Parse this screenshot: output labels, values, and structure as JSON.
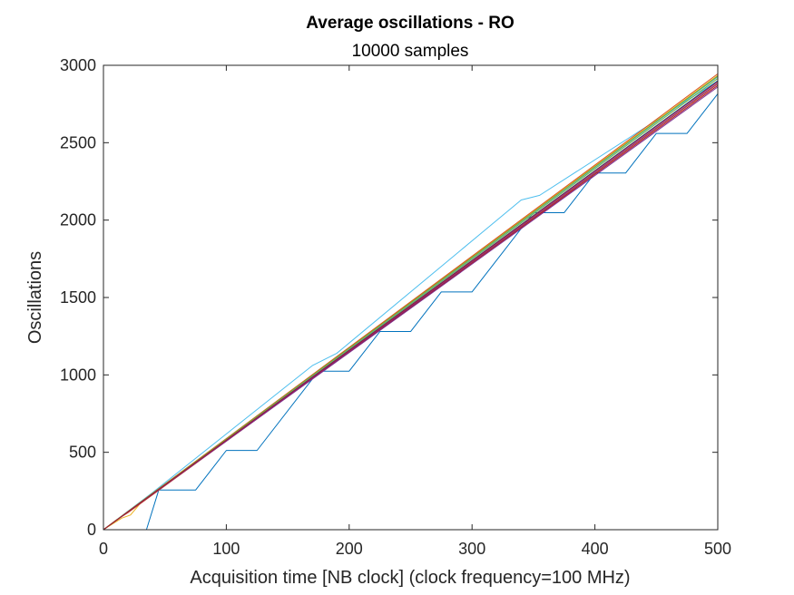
{
  "chart_data": {
    "type": "line",
    "title": "Average oscillations - RO",
    "subtitle": "10000 samples",
    "xlabel": "Acquisition time [NB clock] (clock frequency=100 MHz)",
    "ylabel": "Oscillations",
    "xlim": [
      0,
      500
    ],
    "ylim": [
      0,
      3000
    ],
    "xticks": [
      0,
      100,
      200,
      300,
      400,
      500
    ],
    "yticks": [
      0,
      500,
      1000,
      1500,
      2000,
      2500,
      3000
    ],
    "grid": false,
    "series": [
      {
        "color": "#0072BD",
        "x": [
          0,
          35,
          45,
          75,
          100,
          125,
          175,
          200,
          225,
          250,
          275,
          300,
          325,
          350,
          375,
          400,
          425,
          450,
          475,
          500
        ],
        "y": [
          0,
          0,
          256,
          256,
          512,
          512,
          1024,
          1024,
          1280,
          1280,
          1536,
          1536,
          1792,
          2048,
          2048,
          2304,
          2304,
          2560,
          2560,
          2816
        ]
      },
      {
        "color": "#4DBEEE",
        "x": [
          0,
          40,
          170,
          190,
          340,
          355,
          500
        ],
        "y": [
          0,
          240,
          1060,
          1140,
          2130,
          2160,
          2900
        ]
      },
      {
        "color": "#EDB120",
        "x": [
          0,
          10,
          15,
          22,
          30,
          500
        ],
        "y": [
          0,
          50,
          75,
          95,
          170,
          2900
        ]
      },
      {
        "color": "#D95319",
        "x": [
          0,
          10,
          20,
          500
        ],
        "y": [
          0,
          60,
          110,
          2880
        ]
      },
      {
        "color": "#A2142F",
        "x": [
          0,
          500
        ],
        "y": [
          0,
          2870
        ]
      },
      {
        "color": "#7E2F8E",
        "x": [
          0,
          500
        ],
        "y": [
          0,
          2885
        ]
      },
      {
        "color": "#77AC30",
        "x": [
          0,
          500
        ],
        "y": [
          0,
          2915
        ]
      },
      {
        "color": "#0072BD",
        "x": [
          0,
          500
        ],
        "y": [
          0,
          2900
        ]
      },
      {
        "color": "#4DBEEE",
        "x": [
          0,
          500
        ],
        "y": [
          0,
          2925
        ]
      },
      {
        "color": "#EDB120",
        "x": [
          0,
          500
        ],
        "y": [
          0,
          2935
        ]
      },
      {
        "color": "#D95319",
        "x": [
          0,
          500
        ],
        "y": [
          0,
          2945
        ]
      },
      {
        "color": "#7E2F8E",
        "x": [
          0,
          500
        ],
        "y": [
          0,
          2860
        ]
      },
      {
        "color": "#77AC30",
        "x": [
          0,
          500
        ],
        "y": [
          0,
          2930
        ]
      },
      {
        "color": "#A2142F",
        "x": [
          0,
          500
        ],
        "y": [
          0,
          2895
        ]
      }
    ]
  }
}
